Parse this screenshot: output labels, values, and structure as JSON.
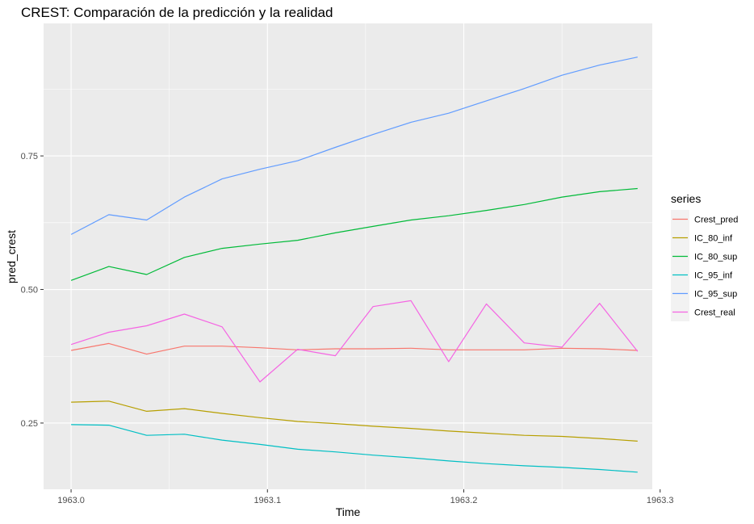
{
  "chart_data": {
    "type": "line",
    "title": "CREST: Comparación de la predicción y la realidad",
    "xlabel": "Time",
    "ylabel": "pred_crest",
    "xlim": [
      1962.986,
      1963.296
    ],
    "ylim": [
      0.126,
      0.998
    ],
    "x_ticks": [
      1963.0,
      1963.1,
      1963.2,
      1963.3
    ],
    "x_tick_labels": [
      "1963.0",
      "1963.1",
      "1963.2",
      "1963.3"
    ],
    "y_ticks": [
      0.25,
      0.5,
      0.75
    ],
    "y_tick_labels": [
      "0.25",
      "0.50",
      "0.75"
    ],
    "grid": true,
    "legend_title": "series",
    "legend_position": "right",
    "x": [
      1963.0,
      1963.0192,
      1963.0385,
      1963.0577,
      1963.0769,
      1963.0962,
      1963.1154,
      1963.1346,
      1963.1538,
      1963.1731,
      1963.1923,
      1963.2115,
      1963.2308,
      1963.25,
      1963.2692,
      1963.2885
    ],
    "series": [
      {
        "name": "Crest_pred",
        "color": "#F8766D",
        "values": [
          0.386,
          0.399,
          0.379,
          0.394,
          0.394,
          0.391,
          0.387,
          0.389,
          0.389,
          0.39,
          0.387,
          0.387,
          0.387,
          0.39,
          0.389,
          0.386
        ]
      },
      {
        "name": "IC_80_inf",
        "color": "#B79F00",
        "values": [
          0.289,
          0.291,
          0.272,
          0.277,
          0.268,
          0.26,
          0.253,
          0.249,
          0.244,
          0.24,
          0.235,
          0.231,
          0.227,
          0.225,
          0.221,
          0.216
        ]
      },
      {
        "name": "IC_80_sup",
        "color": "#00BA38",
        "values": [
          0.517,
          0.543,
          0.528,
          0.56,
          0.577,
          0.585,
          0.592,
          0.606,
          0.618,
          0.63,
          0.638,
          0.648,
          0.659,
          0.673,
          0.683,
          0.689
        ]
      },
      {
        "name": "IC_95_inf",
        "color": "#00BFC4",
        "values": [
          0.247,
          0.246,
          0.227,
          0.229,
          0.218,
          0.21,
          0.201,
          0.196,
          0.19,
          0.185,
          0.179,
          0.174,
          0.17,
          0.167,
          0.163,
          0.158
        ]
      },
      {
        "name": "IC_95_sup",
        "color": "#619CFF",
        "values": [
          0.603,
          0.64,
          0.63,
          0.673,
          0.707,
          0.725,
          0.741,
          0.766,
          0.79,
          0.813,
          0.83,
          0.853,
          0.876,
          0.901,
          0.92,
          0.935
        ]
      },
      {
        "name": "Crest_real",
        "color": "#F564E3",
        "values": [
          0.397,
          0.42,
          0.432,
          0.454,
          0.43,
          0.327,
          0.388,
          0.376,
          0.468,
          0.479,
          0.365,
          0.473,
          0.4,
          0.392,
          0.474,
          0.384
        ]
      }
    ]
  }
}
